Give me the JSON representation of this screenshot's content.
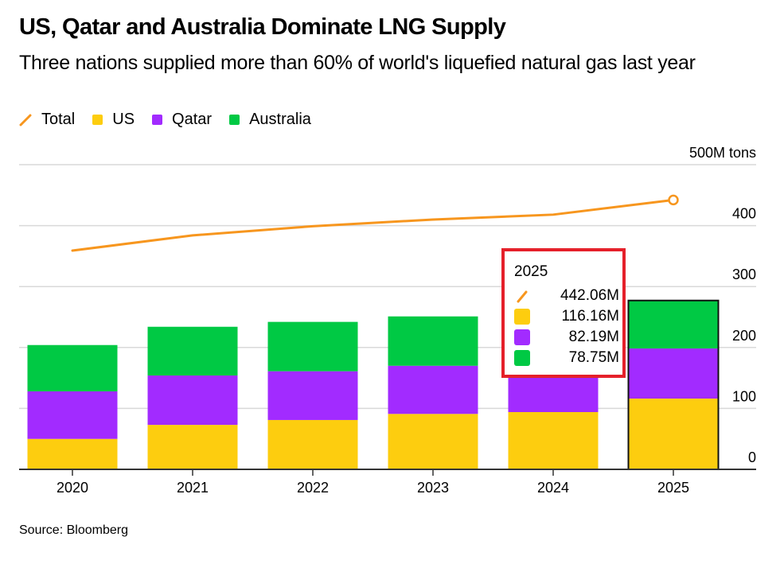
{
  "header": {
    "title": "US, Qatar and Australia Dominate LNG Supply",
    "subtitle": "Three nations supplied more than 60% of world's liquefied natural gas last year"
  },
  "legend": [
    {
      "label": "Total",
      "icon": "line-icon",
      "color": "#f7961e"
    },
    {
      "label": "US",
      "icon": "square-icon",
      "color": "#fdcd0f"
    },
    {
      "label": "Qatar",
      "icon": "square-icon",
      "color": "#a22bff"
    },
    {
      "label": "Australia",
      "icon": "square-icon",
      "color": "#00c944"
    }
  ],
  "tooltip": {
    "year": "2025",
    "rows": [
      {
        "series": "Total",
        "value": "442.06M",
        "color": "#f7961e"
      },
      {
        "series": "US",
        "value": "116.16M",
        "color": "#fdcd0f"
      },
      {
        "series": "Qatar",
        "value": "82.19M",
        "color": "#a22bff"
      },
      {
        "series": "Australia",
        "value": "78.75M",
        "color": "#00c944"
      }
    ],
    "highlight_color": "#e5202a"
  },
  "source": "Source: Bloomberg",
  "chart_data": {
    "type": "bar",
    "stacked": true,
    "title": "US, Qatar and Australia Dominate LNG Supply",
    "subtitle": "Three nations supplied more than 60% of world's liquefied natural gas last year",
    "xlabel": "",
    "ylabel": "M tons",
    "ylim": [
      0,
      500
    ],
    "yticks": [
      0,
      100,
      200,
      300,
      400,
      500
    ],
    "ytick_labels": [
      "0",
      "100",
      "200",
      "300",
      "400",
      "500M tons"
    ],
    "y_axis_side": "right",
    "grid": true,
    "legend_position": "top-left",
    "categories": [
      "2020",
      "2021",
      "2022",
      "2023",
      "2024",
      "2025"
    ],
    "highlighted_category": "2025",
    "series": [
      {
        "name": "US",
        "type": "bar",
        "color": "#fdcd0f",
        "values": [
          50,
          73,
          81,
          91,
          94,
          116.16
        ]
      },
      {
        "name": "Qatar",
        "type": "bar",
        "color": "#a22bff",
        "values": [
          78,
          81,
          80,
          79,
          80,
          82.19
        ]
      },
      {
        "name": "Australia",
        "type": "bar",
        "color": "#00c944",
        "values": [
          76,
          80,
          81,
          81,
          80,
          78.75
        ]
      },
      {
        "name": "Total",
        "type": "line",
        "color": "#f7961e",
        "values": [
          359,
          384,
          399,
          410,
          418,
          442.06
        ]
      }
    ],
    "source": "Source: Bloomberg"
  }
}
